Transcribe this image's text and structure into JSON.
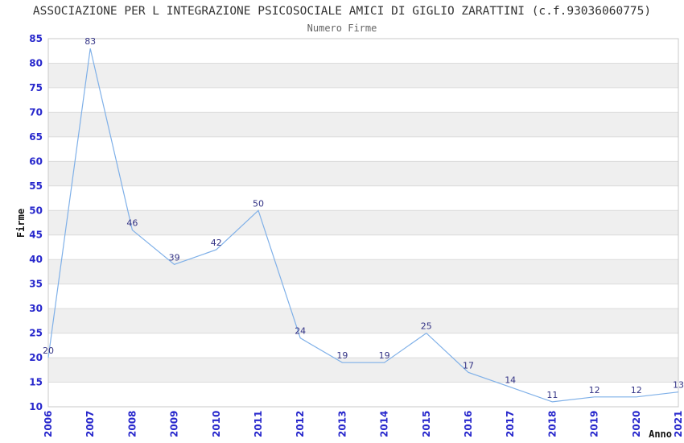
{
  "chart_data": {
    "type": "line",
    "title": "ASSOCIAZIONE PER L INTEGRAZIONE PSICOSOCIALE AMICI DI GIGLIO ZARATTINI (c.f.93036060775)",
    "subtitle": "Numero Firme",
    "xlabel": "Anno",
    "ylabel": "Firme",
    "x": [
      2006,
      2007,
      2008,
      2009,
      2010,
      2011,
      2012,
      2013,
      2014,
      2015,
      2016,
      2017,
      2018,
      2019,
      2020,
      2021
    ],
    "values": [
      20,
      83,
      46,
      39,
      42,
      50,
      24,
      19,
      19,
      25,
      17,
      14,
      11,
      12,
      12,
      13
    ],
    "series_name": "Numero Firme",
    "ylim": [
      10,
      85
    ],
    "ytick_step": 5,
    "grid": "horizontal-bands-alternating",
    "legend": "none",
    "point_labels": true,
    "colors": {
      "line": "#7fb0e8",
      "tick_label": "#2727cc",
      "point_label": "#333385",
      "band": "#efefef",
      "gridline": "#dcdcdc",
      "border": "#c8c8c8",
      "title": "#333333",
      "subtitle": "#666666",
      "axis_title": "#111111"
    }
  }
}
